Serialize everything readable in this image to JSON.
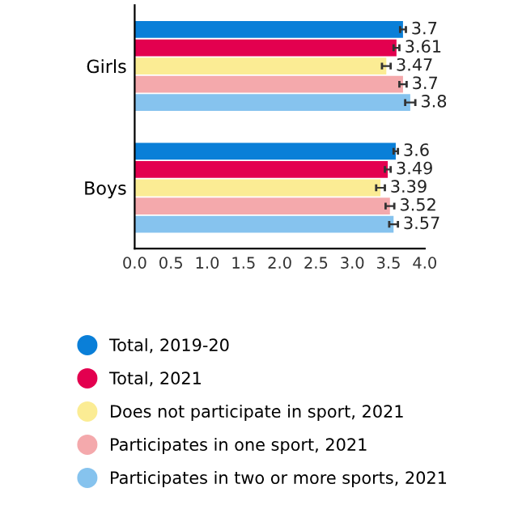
{
  "chart_data": {
    "type": "bar",
    "orientation": "horizontal",
    "categories": [
      "Girls",
      "Boys"
    ],
    "series": [
      {
        "name": "Total, 2019-20",
        "color": "#0a7fd8",
        "values": [
          3.7,
          3.6
        ],
        "errors": [
          0.04,
          0.03
        ]
      },
      {
        "name": "Total, 2021",
        "color": "#e3004f",
        "values": [
          3.61,
          3.49
        ],
        "errors": [
          0.04,
          0.04
        ]
      },
      {
        "name": "Does not participate in sport, 2021",
        "color": "#fbec94",
        "values": [
          3.47,
          3.39
        ],
        "errors": [
          0.06,
          0.06
        ]
      },
      {
        "name": "Participates in one sport, 2021",
        "color": "#f4a9ac",
        "values": [
          3.7,
          3.52
        ],
        "errors": [
          0.05,
          0.06
        ]
      },
      {
        "name": "Participates in two or more sports, 2021",
        "color": "#86c3ee",
        "values": [
          3.8,
          3.57
        ],
        "errors": [
          0.07,
          0.06
        ]
      }
    ],
    "xlim": [
      0,
      4
    ],
    "xticks": [
      {
        "value": 0,
        "label": "0.0"
      },
      {
        "value": 0.5,
        "label": "0.5"
      },
      {
        "value": 1,
        "label": "1.0"
      },
      {
        "value": 1.5,
        "label": "1.5"
      },
      {
        "value": 2,
        "label": "2.0"
      },
      {
        "value": 2.5,
        "label": "2.5"
      },
      {
        "value": 3,
        "label": "3.0"
      },
      {
        "value": 3.5,
        "label": "3.5"
      },
      {
        "value": 4,
        "label": "4.0"
      }
    ],
    "data_labels": true,
    "legend": "bottom",
    "grid": false
  }
}
